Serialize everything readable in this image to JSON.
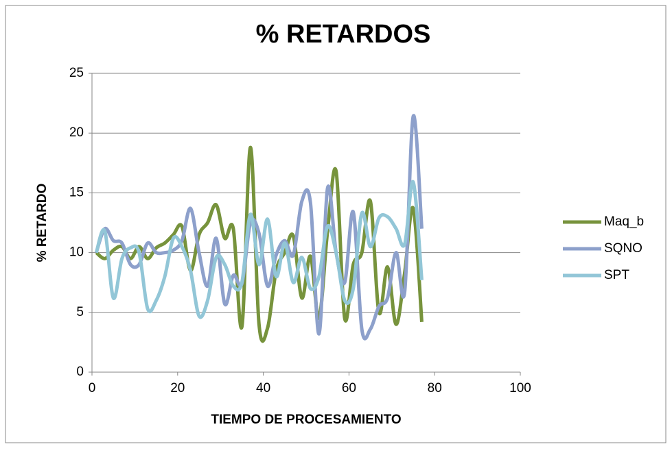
{
  "chart_data": {
    "type": "line",
    "title": "% RETARDOS",
    "x_label": "TIEMPO DE PROCESAMIENTO",
    "y_label": "% RETARDO",
    "x": [
      1,
      3,
      5,
      7,
      9,
      11,
      13,
      15,
      17,
      19,
      21,
      23,
      25,
      27,
      29,
      31,
      33,
      35,
      37,
      39,
      41,
      43,
      45,
      47,
      49,
      51,
      53,
      55,
      57,
      59,
      61,
      63,
      65,
      67,
      69,
      71,
      73,
      75,
      77
    ],
    "series": [
      {
        "name": "Maq_b",
        "color": "#77933c",
        "values": [
          10,
          9.5,
          10.2,
          10.5,
          9.5,
          10.5,
          9.5,
          10.4,
          10.8,
          11.5,
          12.2,
          8.5,
          11.5,
          12.5,
          14,
          11.2,
          12,
          3.8,
          18.8,
          4,
          3.7,
          8.5,
          10,
          11.4,
          6.2,
          9.7,
          4.5,
          11.8,
          16.8,
          4.5,
          9,
          10,
          14.3,
          5,
          8.8,
          4,
          8.3,
          13.7,
          4.2
        ]
      },
      {
        "name": "SQNO",
        "color": "#8da0cb",
        "values": [
          10,
          12,
          11,
          10.8,
          9,
          9,
          10.8,
          10,
          10,
          10.2,
          11,
          13.7,
          10,
          7.2,
          11.2,
          5.7,
          8.1,
          7.4,
          12.5,
          11.6,
          7.2,
          9.8,
          11,
          9.8,
          14.3,
          14.2,
          3.2,
          15.4,
          10,
          7.5,
          13.4,
          3.6,
          3.6,
          5.5,
          6.2,
          10,
          6.7,
          21.4,
          12
        ]
      },
      {
        "name": "SPT",
        "color": "#92c6d7",
        "values": [
          10,
          11.8,
          6.2,
          9.5,
          10.4,
          10,
          5.3,
          6,
          8,
          11.2,
          10.5,
          8.5,
          4.7,
          6,
          9.6,
          9,
          7.2,
          7.5,
          13.2,
          9,
          12.8,
          8,
          10.8,
          7.5,
          9.6,
          7,
          8,
          12.2,
          10,
          6,
          7,
          13.3,
          10.5,
          12.9,
          13,
          12,
          10.7,
          15.9,
          7.7
        ]
      }
    ],
    "xlim": [
      0,
      100
    ],
    "xticks": [
      0,
      20,
      40,
      60,
      80,
      100
    ],
    "ylim": [
      0,
      25
    ],
    "yticks": [
      0,
      5,
      10,
      15,
      20,
      25
    ],
    "grid": true,
    "legend": "right"
  }
}
